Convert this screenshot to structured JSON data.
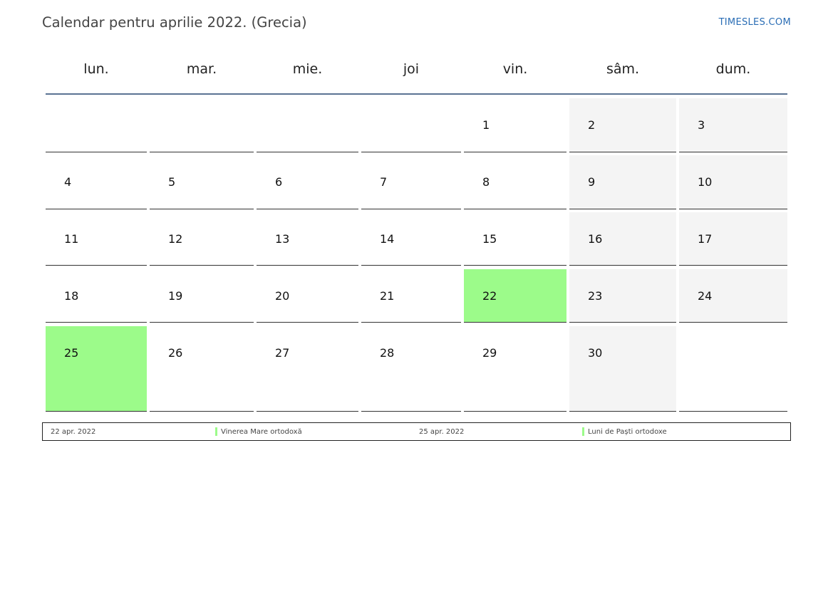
{
  "page": {
    "title": "Calendar pentru aprilie 2022. (Grecia)",
    "brand": "TIMESLES.COM"
  },
  "colors": {
    "holiday": "#9cfb8a",
    "weekend": "#f4f4f4",
    "header_rule": "#5a7393",
    "brand": "#2a6db5"
  },
  "weekdays": [
    "lun.",
    "mar.",
    "mie.",
    "joi",
    "vin.",
    "sâm.",
    "dum."
  ],
  "weeks": [
    [
      "",
      "",
      "",
      "",
      "1",
      "2",
      "3"
    ],
    [
      "4",
      "5",
      "6",
      "7",
      "8",
      "9",
      "10"
    ],
    [
      "11",
      "12",
      "13",
      "14",
      "15",
      "16",
      "17"
    ],
    [
      "18",
      "19",
      "20",
      "21",
      "22",
      "23",
      "24"
    ],
    [
      "25",
      "26",
      "27",
      "28",
      "29",
      "30",
      ""
    ]
  ],
  "holiday_days": [
    "22",
    "25"
  ],
  "legend": [
    {
      "date": "22 apr. 2022",
      "name": "Vinerea Mare ortodoxă"
    },
    {
      "date": "25 apr. 2022",
      "name": "Luni de Paști ortodoxe"
    }
  ]
}
